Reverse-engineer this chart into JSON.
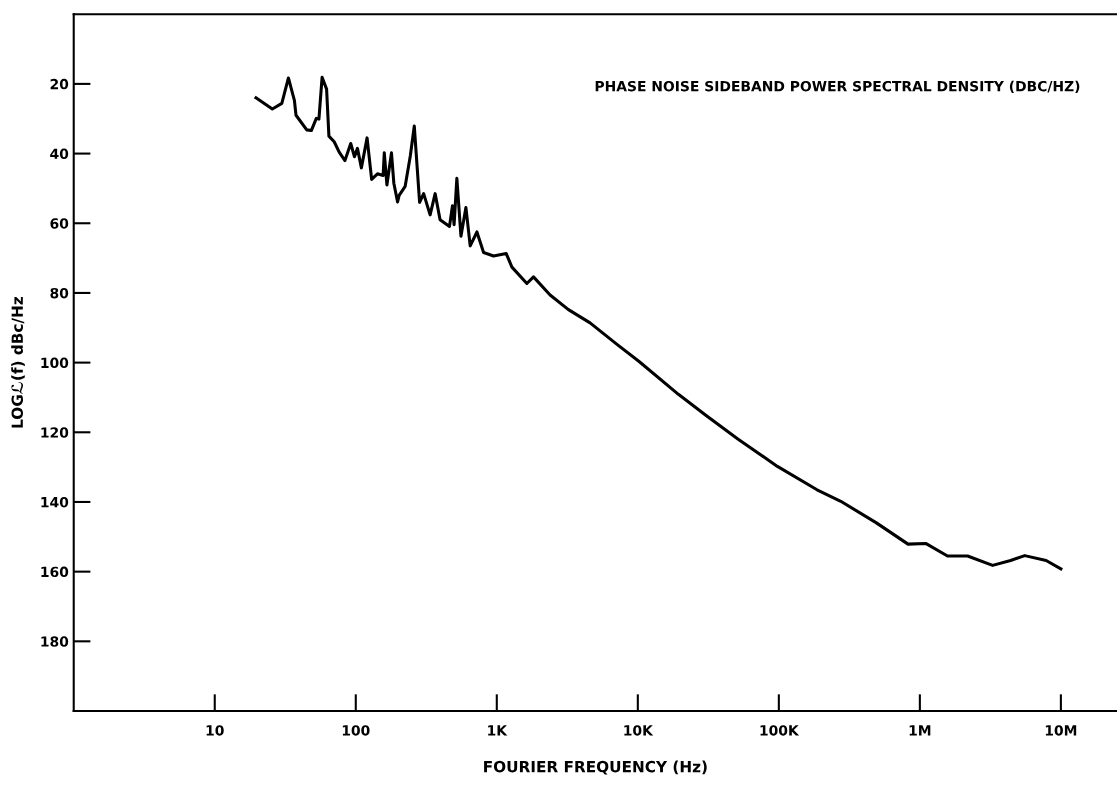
{
  "chart_data": {
    "type": "line",
    "xlabel": "FOURIER FREQUENCY (Hz)",
    "ylabel": "LOGℒ(f) dBc/Hz",
    "annotations": [
      "PHASE NOISE SIDEBAND POWER SPECTRAL DENSITY (DBC/HZ)"
    ],
    "log": "x",
    "grid": false,
    "marker": "none",
    "line_style": "solid",
    "xlim": [
      1,
      25000000
    ],
    "ylim": [
      200,
      0
    ],
    "xticks": [
      {
        "value": 10,
        "label": "10"
      },
      {
        "value": 100,
        "label": "100"
      },
      {
        "value": 1000,
        "label": "1K"
      },
      {
        "value": 10000,
        "label": "10K"
      },
      {
        "value": 100000,
        "label": "100K"
      },
      {
        "value": 1000000,
        "label": "1M"
      },
      {
        "value": 10000000,
        "label": "10M"
      }
    ],
    "yticks": [
      20,
      40,
      60,
      80,
      100,
      120,
      140,
      160,
      180
    ],
    "series": [
      {
        "color": "#000000",
        "x": [
          19.6,
          25.6,
          29.9,
          33.3,
          36.7,
          37.7,
          44.9,
          48.4,
          52.5,
          54.8,
          57.7,
          62.1,
          64.5,
          70.3,
          76.3,
          83.8,
          92.1,
          97.9,
          102.8,
          109.6,
          120.3,
          129.6,
          142.5,
          156.3,
          159.3,
          166.3,
          179.1,
          186.2,
          197.9,
          203,
          224,
          243.6,
          260,
          283.6,
          303,
          336.7,
          365.5,
          396,
          462,
          485,
          498,
          521,
          557,
          604,
          648,
          723,
          806,
          948,
          1167,
          1280,
          1634,
          1821,
          2388,
          3221,
          4585,
          7080,
          10160,
          19400,
          30500,
          51200,
          97700,
          186600,
          275000,
          492000,
          824000,
          1100000,
          1570000,
          2180000,
          3280000,
          4400000,
          5540000,
          7860000,
          10000000
        ],
        "values": [
          24,
          27.2,
          25.6,
          18.3,
          24.7,
          29,
          33.2,
          33.4,
          29.9,
          30.1,
          18.1,
          21.5,
          35,
          36.6,
          39.6,
          42,
          37.1,
          40.9,
          38.5,
          44.1,
          35.5,
          47.4,
          45.8,
          46.3,
          39.8,
          49,
          39.8,
          48.5,
          53.9,
          52,
          49.4,
          40.7,
          32.1,
          54,
          51.5,
          57.6,
          51.5,
          59,
          60.9,
          55,
          60.4,
          47.1,
          63.7,
          55.5,
          66.5,
          62.5,
          68.4,
          69.4,
          68.7,
          72.6,
          77.3,
          75.4,
          80.6,
          84.8,
          88.6,
          94.7,
          99.6,
          109.1,
          115.2,
          121.9,
          129.8,
          136.5,
          139.8,
          146,
          152.1,
          151.9,
          155.5,
          155.5,
          158.2,
          156.8,
          155.4,
          156.8,
          159.2
        ]
      }
    ]
  }
}
